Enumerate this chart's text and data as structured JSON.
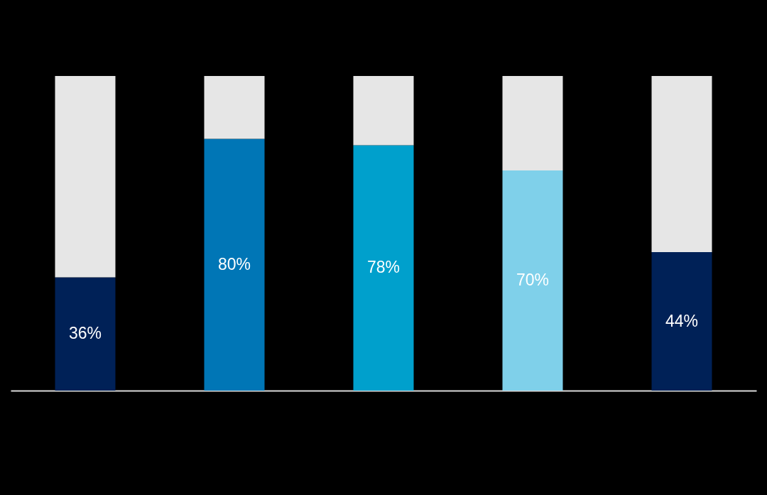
{
  "chart_data": {
    "type": "bar",
    "stacked": true,
    "categories": [
      null,
      null,
      null,
      null,
      null
    ],
    "series": [
      {
        "values": [
          36,
          80,
          78,
          70,
          44
        ],
        "colors": [
          "#002157",
          "#0076b6",
          "#00a0cc",
          "#7fd0ea",
          "#002157"
        ],
        "value_labels": [
          "36%",
          "80%",
          "78%",
          "70%",
          "44%"
        ]
      },
      {
        "values": [
          64,
          20,
          22,
          30,
          56
        ],
        "color": "#e6e6e6"
      }
    ],
    "grid": false
  }
}
